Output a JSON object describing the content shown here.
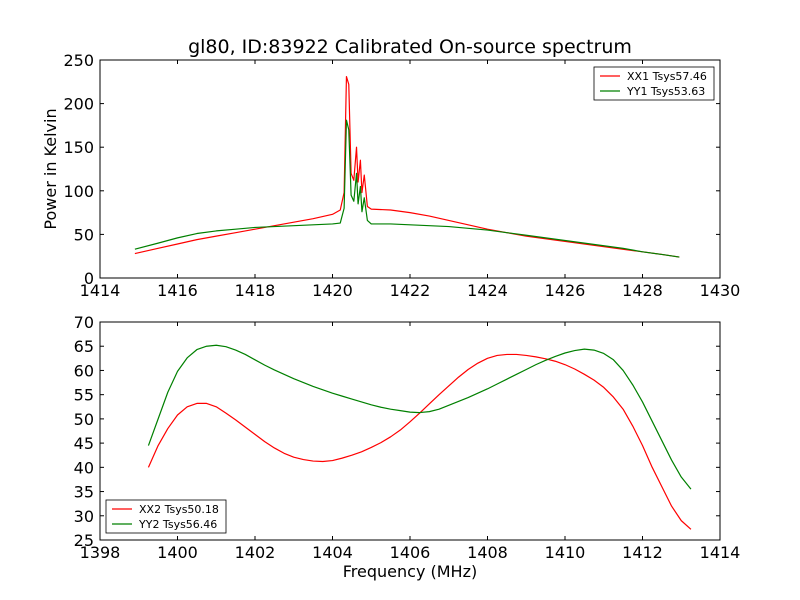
{
  "figure": {
    "title": "gl80, ID:83922 Calibrated On-source spectrum",
    "background": "#ffffff"
  },
  "chart_data": [
    {
      "type": "line",
      "title": "gl80, ID:83922 Calibrated On-source spectrum",
      "xlabel": "",
      "ylabel": "Power in Kelvin",
      "xlim": [
        1414,
        1430
      ],
      "ylim": [
        0,
        250
      ],
      "xticks": [
        1414,
        1416,
        1418,
        1420,
        1422,
        1424,
        1426,
        1428,
        1430
      ],
      "yticks": [
        0,
        50,
        100,
        150,
        200,
        250
      ],
      "legend": "top-right",
      "series": [
        {
          "name": "XX1 Tsys57.46",
          "color": "#ff0000",
          "x": [
            1414.9,
            1415.5,
            1416.0,
            1416.5,
            1417.0,
            1417.5,
            1418.0,
            1418.5,
            1419.0,
            1419.5,
            1420.0,
            1420.2,
            1420.3,
            1420.36,
            1420.42,
            1420.48,
            1420.55,
            1420.62,
            1420.66,
            1420.72,
            1420.76,
            1420.82,
            1420.9,
            1421.0,
            1421.5,
            1422.0,
            1422.5,
            1423.0,
            1423.5,
            1424.0,
            1424.5,
            1425.0,
            1425.5,
            1426.0,
            1426.5,
            1427.0,
            1427.5,
            1428.0,
            1428.5,
            1428.95
          ],
          "values": [
            28,
            34,
            39,
            44,
            48,
            52,
            56,
            60,
            64,
            68,
            73,
            78,
            98,
            231,
            222,
            120,
            112,
            150,
            110,
            135,
            98,
            118,
            82,
            79,
            78,
            75,
            71,
            66,
            61,
            56,
            52,
            48,
            45,
            42,
            39,
            36,
            33,
            30,
            27,
            24
          ]
        },
        {
          "name": "YY1 Tsys53.63",
          "color": "#008000",
          "x": [
            1414.9,
            1415.5,
            1416.0,
            1416.5,
            1417.0,
            1417.5,
            1418.0,
            1418.5,
            1419.0,
            1419.5,
            1420.0,
            1420.2,
            1420.3,
            1420.36,
            1420.42,
            1420.48,
            1420.55,
            1420.62,
            1420.66,
            1420.72,
            1420.76,
            1420.82,
            1420.9,
            1421.0,
            1421.5,
            1422.0,
            1422.5,
            1423.0,
            1423.5,
            1424.0,
            1424.5,
            1425.0,
            1425.5,
            1426.0,
            1426.5,
            1427.0,
            1427.5,
            1428.0,
            1428.5,
            1428.95
          ],
          "values": [
            33,
            40,
            46,
            51,
            54,
            56,
            58,
            59,
            60,
            61,
            62,
            63,
            80,
            181,
            170,
            95,
            88,
            120,
            85,
            105,
            76,
            92,
            66,
            62,
            62,
            61,
            60,
            59,
            57,
            55,
            52,
            49,
            46,
            43,
            40,
            37,
            34,
            30,
            27,
            24
          ]
        }
      ]
    },
    {
      "type": "line",
      "title": "",
      "xlabel": "Frequency (MHz)",
      "ylabel": "",
      "xlim": [
        1398,
        1414
      ],
      "ylim": [
        25,
        70
      ],
      "xticks": [
        1398,
        1400,
        1402,
        1404,
        1406,
        1408,
        1410,
        1412,
        1414
      ],
      "yticks": [
        25,
        30,
        35,
        40,
        45,
        50,
        55,
        60,
        65,
        70
      ],
      "legend": "bottom-left",
      "series": [
        {
          "name": "XX2 Tsys50.18",
          "color": "#ff0000",
          "x": [
            1399.25,
            1399.5,
            1399.75,
            1400.0,
            1400.25,
            1400.5,
            1400.75,
            1401.0,
            1401.25,
            1401.5,
            1401.75,
            1402.0,
            1402.25,
            1402.5,
            1402.75,
            1403.0,
            1403.25,
            1403.5,
            1403.75,
            1404.0,
            1404.25,
            1404.5,
            1404.75,
            1405.0,
            1405.25,
            1405.5,
            1405.75,
            1406.0,
            1406.25,
            1406.5,
            1406.75,
            1407.0,
            1407.25,
            1407.5,
            1407.75,
            1408.0,
            1408.25,
            1408.5,
            1408.75,
            1409.0,
            1409.25,
            1409.5,
            1409.75,
            1410.0,
            1410.25,
            1410.5,
            1410.75,
            1411.0,
            1411.25,
            1411.5,
            1411.75,
            1412.0,
            1412.25,
            1412.5,
            1412.75,
            1413.0,
            1413.25
          ],
          "values": [
            40,
            44.5,
            48,
            50.8,
            52.5,
            53.2,
            53.2,
            52.5,
            51.2,
            49.8,
            48.3,
            46.8,
            45.3,
            44.0,
            42.9,
            42.1,
            41.6,
            41.3,
            41.2,
            41.4,
            41.9,
            42.5,
            43.2,
            44.1,
            45.1,
            46.3,
            47.7,
            49.4,
            51.2,
            53.1,
            55.0,
            56.8,
            58.6,
            60.2,
            61.5,
            62.5,
            63.1,
            63.3,
            63.3,
            63.1,
            62.8,
            62.4,
            61.9,
            61.2,
            60.3,
            59.2,
            58.0,
            56.5,
            54.5,
            52.0,
            48.5,
            44.5,
            40.0,
            36.0,
            32.0,
            29.0,
            27.2
          ]
        },
        {
          "name": "YY2 Tsys56.46",
          "color": "#008000",
          "x": [
            1399.25,
            1399.5,
            1399.75,
            1400.0,
            1400.25,
            1400.5,
            1400.75,
            1401.0,
            1401.25,
            1401.5,
            1401.75,
            1402.0,
            1402.25,
            1402.5,
            1402.75,
            1403.0,
            1403.25,
            1403.5,
            1403.75,
            1404.0,
            1404.25,
            1404.5,
            1404.75,
            1405.0,
            1405.25,
            1405.5,
            1405.75,
            1406.0,
            1406.25,
            1406.5,
            1406.75,
            1407.0,
            1407.25,
            1407.5,
            1407.75,
            1408.0,
            1408.25,
            1408.5,
            1408.75,
            1409.0,
            1409.25,
            1409.5,
            1409.75,
            1410.0,
            1410.25,
            1410.5,
            1410.75,
            1411.0,
            1411.25,
            1411.5,
            1411.75,
            1412.0,
            1412.25,
            1412.5,
            1412.75,
            1413.0,
            1413.25
          ],
          "values": [
            44.5,
            50.0,
            55.5,
            59.8,
            62.6,
            64.3,
            65.0,
            65.2,
            64.9,
            64.2,
            63.3,
            62.2,
            61.1,
            60.1,
            59.2,
            58.3,
            57.5,
            56.7,
            56.0,
            55.3,
            54.7,
            54.1,
            53.5,
            52.9,
            52.4,
            52.0,
            51.7,
            51.4,
            51.3,
            51.5,
            52.0,
            52.8,
            53.6,
            54.4,
            55.3,
            56.2,
            57.2,
            58.2,
            59.2,
            60.2,
            61.2,
            62.1,
            62.9,
            63.6,
            64.1,
            64.4,
            64.2,
            63.5,
            62.2,
            60.0,
            57.0,
            53.5,
            49.5,
            45.5,
            41.5,
            38.0,
            35.5
          ]
        }
      ]
    }
  ]
}
